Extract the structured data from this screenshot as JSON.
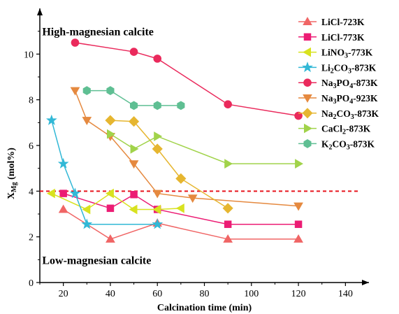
{
  "chart_data": {
    "type": "line",
    "xlabel": "Calcination time (min)",
    "ylabel": "X",
    "ylabel_sub": "Mg",
    "ylabel_unit": " (mol%)",
    "xlim": [
      10,
      150
    ],
    "ylim": [
      0,
      12
    ],
    "xticks": [
      20,
      40,
      60,
      80,
      100,
      120,
      140
    ],
    "yticks": [
      0,
      2,
      4,
      6,
      8,
      10
    ],
    "grid": false,
    "legend_position": "right",
    "annotations": [
      {
        "text": "High-magnesian calcite",
        "x": 11,
        "y": 11
      },
      {
        "text": "Low-magnesian calcite",
        "x": 11,
        "y": 1
      }
    ],
    "reference_line": {
      "y": 4,
      "style": "dashed",
      "color": "#e8141d"
    },
    "series": [
      {
        "name": "LiCl-723K",
        "name_parts": [
          [
            "LiCl-723K",
            0
          ]
        ],
        "color": "#f06565",
        "marker": "triangle-up",
        "x": [
          20,
          40,
          60,
          90,
          120
        ],
        "y": [
          3.2,
          1.9,
          2.6,
          1.9,
          1.9
        ]
      },
      {
        "name": "LiCl-773K",
        "name_parts": [
          [
            "LiCl-773K",
            0
          ]
        ],
        "color": "#ec1c74",
        "marker": "square",
        "x": [
          20,
          40,
          50,
          60,
          90,
          120
        ],
        "y": [
          3.9,
          3.25,
          3.85,
          3.2,
          2.55,
          2.55
        ]
      },
      {
        "name": "LiNO3-773K",
        "name_parts": [
          [
            "LiNO",
            0
          ],
          [
            "3",
            1
          ],
          [
            "-773K",
            0
          ]
        ],
        "color": "#d8e21f",
        "marker": "triangle-left",
        "x": [
          15,
          30,
          40,
          50,
          60,
          70
        ],
        "y": [
          3.9,
          3.2,
          3.9,
          3.2,
          3.2,
          3.25
        ]
      },
      {
        "name": "Li2CO3-873K",
        "name_parts": [
          [
            "Li",
            0
          ],
          [
            "2",
            1
          ],
          [
            "CO",
            0
          ],
          [
            "3",
            1
          ],
          [
            "-873K",
            0
          ]
        ],
        "color": "#32b8d6",
        "marker": "star",
        "x": [
          15,
          20,
          25,
          30,
          60
        ],
        "y": [
          7.1,
          5.2,
          3.9,
          2.55,
          2.55
        ]
      },
      {
        "name": "Na3PO4-873K",
        "name_parts": [
          [
            "Na",
            0
          ],
          [
            "3",
            1
          ],
          [
            "PO",
            0
          ],
          [
            "4",
            1
          ],
          [
            "-873K",
            0
          ]
        ],
        "color": "#ea2a5c",
        "marker": "circle",
        "x": [
          25,
          50,
          60,
          90,
          120
        ],
        "y": [
          10.5,
          10.1,
          9.8,
          7.8,
          7.3
        ]
      },
      {
        "name": "Na3PO4-923K",
        "name_parts": [
          [
            "Na",
            0
          ],
          [
            "3",
            1
          ],
          [
            "PO",
            0
          ],
          [
            "4",
            1
          ],
          [
            "-923K",
            0
          ]
        ],
        "color": "#e5893f",
        "marker": "triangle-down",
        "x": [
          25,
          30,
          40,
          50,
          60,
          75,
          120
        ],
        "y": [
          8.4,
          7.1,
          6.4,
          5.2,
          3.9,
          3.7,
          3.35
        ]
      },
      {
        "name": "Na2CO3-873K",
        "name_parts": [
          [
            "Na",
            0
          ],
          [
            "2",
            1
          ],
          [
            "CO",
            0
          ],
          [
            "3",
            1
          ],
          [
            "-873K",
            0
          ]
        ],
        "color": "#e6b630",
        "marker": "diamond",
        "x": [
          40,
          50,
          60,
          70,
          90
        ],
        "y": [
          7.1,
          7.05,
          5.85,
          4.55,
          3.25
        ]
      },
      {
        "name": "CaCl2-873K",
        "name_parts": [
          [
            "CaCl",
            0
          ],
          [
            "2",
            1
          ],
          [
            "-873K",
            0
          ]
        ],
        "color": "#a1d34a",
        "marker": "triangle-right",
        "x": [
          40,
          50,
          60,
          90,
          120
        ],
        "y": [
          6.5,
          5.85,
          6.4,
          5.2,
          5.2
        ]
      },
      {
        "name": "K2CO3-873K",
        "name_parts": [
          [
            "K",
            0
          ],
          [
            "2",
            1
          ],
          [
            "CO",
            0
          ],
          [
            "3",
            1
          ],
          [
            "-873K",
            0
          ]
        ],
        "color": "#5fbf93",
        "marker": "hexagon",
        "x": [
          30,
          40,
          50,
          60,
          70
        ],
        "y": [
          8.4,
          8.4,
          7.75,
          7.75,
          7.75
        ]
      }
    ]
  }
}
